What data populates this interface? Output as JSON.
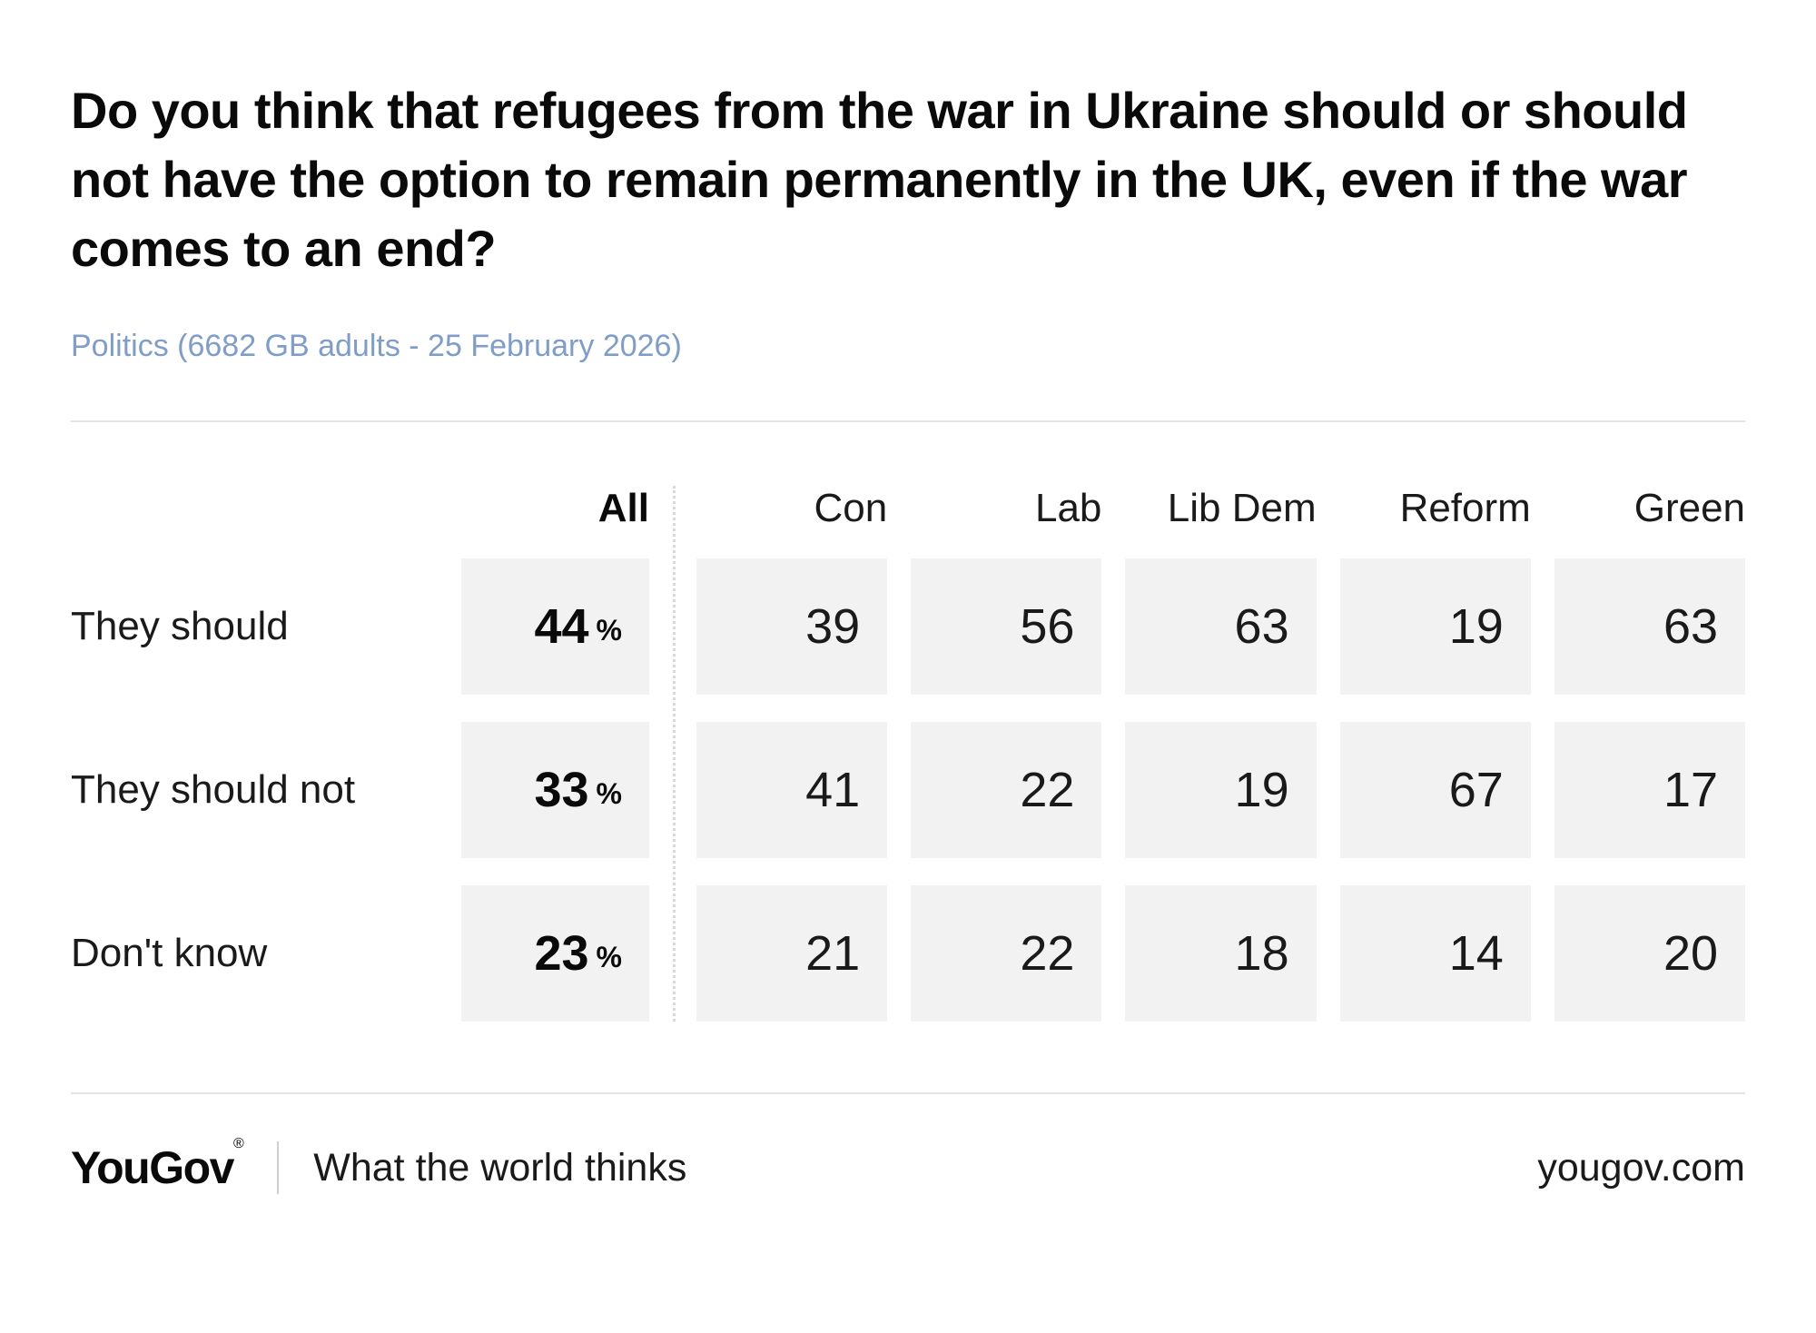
{
  "header": {
    "title": "Do you think that refugees from the war in Ukraine should or should not have the option to remain permanently in the UK, even if the war comes to an end?",
    "subtitle": "Politics (6682 GB adults - 25 February 2026)"
  },
  "chart_data": {
    "type": "table",
    "columns": [
      "All",
      "Con",
      "Lab",
      "Lib Dem",
      "Reform",
      "Green"
    ],
    "all_unit": "%",
    "rows": [
      {
        "label": "They should",
        "all": "44",
        "values": [
          "39",
          "56",
          "63",
          "19",
          "63"
        ]
      },
      {
        "label": "They should not",
        "all": "33",
        "values": [
          "41",
          "22",
          "19",
          "67",
          "17"
        ]
      },
      {
        "label": "Don't know",
        "all": "23",
        "values": [
          "21",
          "22",
          "18",
          "14",
          "20"
        ]
      }
    ]
  },
  "footer": {
    "logo": "YouGov",
    "registered": "®",
    "tagline": "What the world thinks",
    "site": "yougov.com"
  }
}
